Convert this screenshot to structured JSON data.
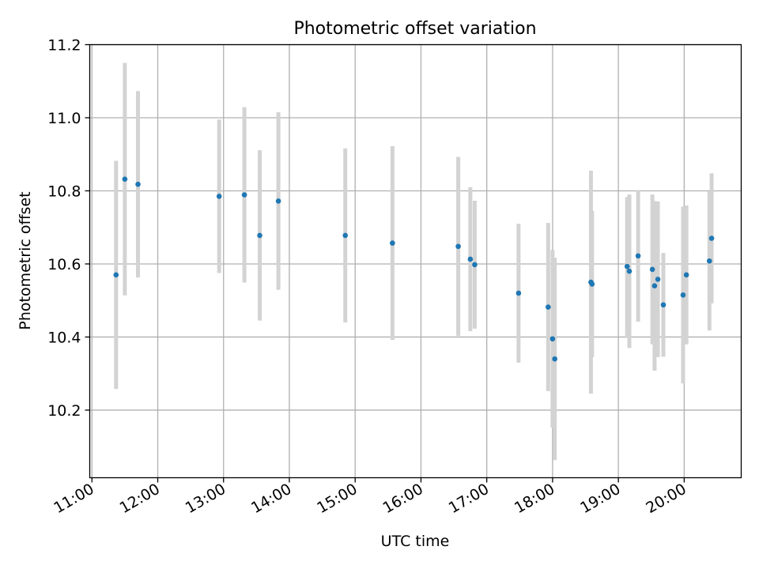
{
  "chart_data": {
    "type": "scatter",
    "title": "Photometric offset variation",
    "xlabel": "UTC time",
    "ylabel": "Photometric offset",
    "xlim": [
      "10:58",
      "20:52"
    ],
    "ylim": [
      10.015,
      11.2
    ],
    "xticks": [
      "11:00",
      "12:00",
      "13:00",
      "14:00",
      "15:00",
      "16:00",
      "17:00",
      "18:00",
      "19:00",
      "20:00"
    ],
    "yticks": [
      10.2,
      10.4,
      10.6,
      10.8,
      11.0,
      11.2
    ],
    "grid": true,
    "legend": "none",
    "colors": {
      "point": "#1f77b4",
      "errorbar": "#d3d3d3",
      "grid": "#b0b0b0"
    },
    "series": [
      {
        "points": [
          {
            "x": "11:22",
            "y": 10.57,
            "err": 0.312
          },
          {
            "x": "11:30",
            "y": 10.832,
            "err": 0.318
          },
          {
            "x": "11:42",
            "y": 10.818,
            "err": 0.255
          },
          {
            "x": "12:56",
            "y": 10.785,
            "err": 0.21
          },
          {
            "x": "13:19",
            "y": 10.789,
            "err": 0.24
          },
          {
            "x": "13:33",
            "y": 10.678,
            "err": 0.233
          },
          {
            "x": "13:50",
            "y": 10.772,
            "err": 0.243
          },
          {
            "x": "14:51",
            "y": 10.678,
            "err": 0.238
          },
          {
            "x": "15:34",
            "y": 10.657,
            "err": 0.265
          },
          {
            "x": "16:34",
            "y": 10.648,
            "err": 0.245
          },
          {
            "x": "16:45",
            "y": 10.613,
            "err": 0.197
          },
          {
            "x": "16:49",
            "y": 10.598,
            "err": 0.175
          },
          {
            "x": "17:29",
            "y": 10.52,
            "err": 0.19
          },
          {
            "x": "17:56",
            "y": 10.482,
            "err": 0.23
          },
          {
            "x": "18:00",
            "y": 10.395,
            "err": 0.243
          },
          {
            "x": "18:02",
            "y": 10.34,
            "err": 0.277
          },
          {
            "x": "18:35",
            "y": 10.55,
            "err": 0.305
          },
          {
            "x": "18:36",
            "y": 10.545,
            "err": 0.2
          },
          {
            "x": "19:08",
            "y": 10.593,
            "err": 0.19
          },
          {
            "x": "19:10",
            "y": 10.58,
            "err": 0.21
          },
          {
            "x": "19:18",
            "y": 10.622,
            "err": 0.18
          },
          {
            "x": "19:31",
            "y": 10.585,
            "err": 0.205
          },
          {
            "x": "19:33",
            "y": 10.54,
            "err": 0.232
          },
          {
            "x": "19:36",
            "y": 10.558,
            "err": 0.213
          },
          {
            "x": "19:41",
            "y": 10.488,
            "err": 0.142
          },
          {
            "x": "19:59",
            "y": 10.515,
            "err": 0.242
          },
          {
            "x": "20:02",
            "y": 10.57,
            "err": 0.19
          },
          {
            "x": "20:23",
            "y": 10.608,
            "err": 0.19
          },
          {
            "x": "20:25",
            "y": 10.67,
            "err": 0.178
          }
        ]
      }
    ]
  }
}
